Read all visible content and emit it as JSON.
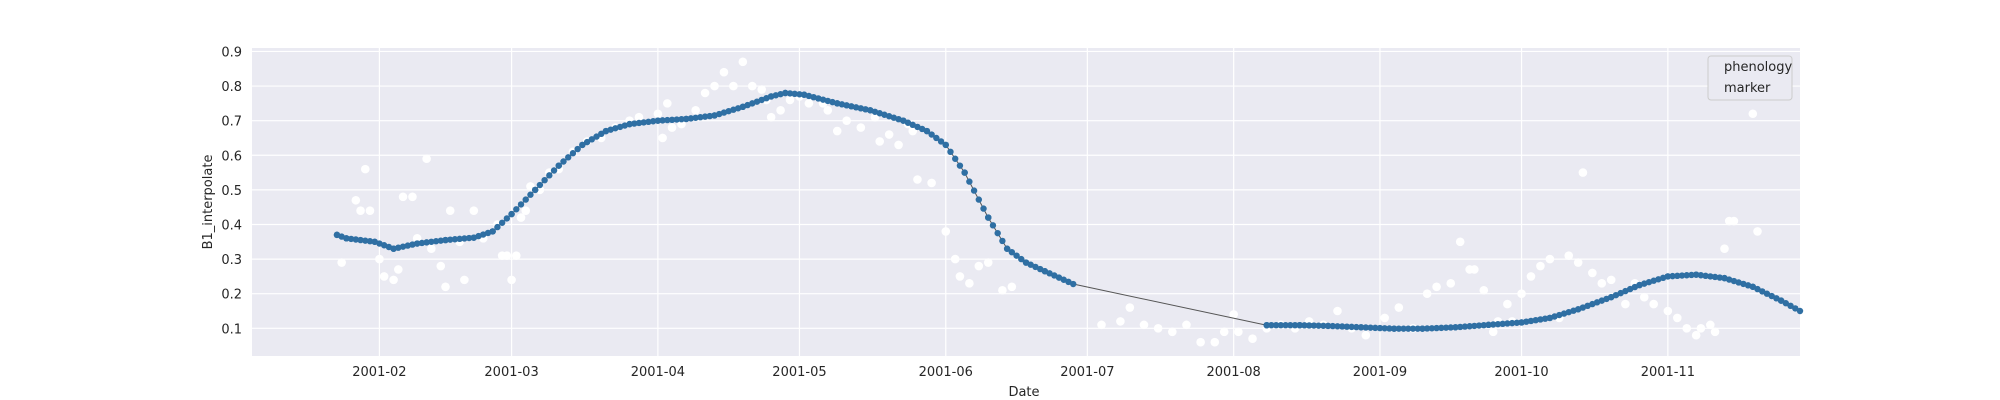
{
  "chart_data": {
    "type": "scatter",
    "title": "",
    "xlabel": "Date",
    "ylabel": "B1_interpolate",
    "x_axis": {
      "type": "date",
      "range": [
        "2001-01-05",
        "2001-11-29"
      ],
      "ticks": [
        "2001-02-01",
        "2001-03-01",
        "2001-04-01",
        "2001-05-01",
        "2001-06-01",
        "2001-07-01",
        "2001-08-01",
        "2001-09-01",
        "2001-10-01",
        "2001-11-01"
      ],
      "tick_labels": [
        "2001-02",
        "2001-03",
        "2001-04",
        "2001-05",
        "2001-06",
        "2001-07",
        "2001-08",
        "2001-09",
        "2001-10",
        "2001-11"
      ]
    },
    "y_axis": {
      "range": [
        0.02,
        0.91
      ],
      "ticks": [
        0.1,
        0.2,
        0.3,
        0.4,
        0.5,
        0.6,
        0.7,
        0.8,
        0.9
      ],
      "tick_labels": [
        "0.1",
        "0.2",
        "0.3",
        "0.4",
        "0.5",
        "0.6",
        "0.7",
        "0.8",
        "0.9"
      ]
    },
    "grid": true,
    "style": {
      "background": "#eaeaf2",
      "grid_color": "#ffffff",
      "raw_color": "#ffffff",
      "smoothed_color": "#2f6fa3",
      "line_color": "#555555"
    },
    "legend": {
      "position": "top-right",
      "entries": [
        "phenology",
        "marker"
      ]
    },
    "series": [
      {
        "role": "raw",
        "points": [
          [
            "2001-01-24",
            0.29
          ],
          [
            "2001-01-27",
            0.47
          ],
          [
            "2001-01-28",
            0.44
          ],
          [
            "2001-01-29",
            0.56
          ],
          [
            "2001-01-30",
            0.44
          ],
          [
            "2001-02-01",
            0.3
          ],
          [
            "2001-02-02",
            0.25
          ],
          [
            "2001-02-04",
            0.24
          ],
          [
            "2001-02-05",
            0.27
          ],
          [
            "2001-02-06",
            0.48
          ],
          [
            "2001-02-08",
            0.48
          ],
          [
            "2001-02-09",
            0.36
          ],
          [
            "2001-02-11",
            0.59
          ],
          [
            "2001-02-12",
            0.33
          ],
          [
            "2001-02-14",
            0.28
          ],
          [
            "2001-02-15",
            0.22
          ],
          [
            "2001-02-16",
            0.44
          ],
          [
            "2001-02-18",
            0.35
          ],
          [
            "2001-02-19",
            0.24
          ],
          [
            "2001-02-21",
            0.44
          ],
          [
            "2001-02-23",
            0.36
          ],
          [
            "2001-02-26",
            0.4
          ],
          [
            "2001-02-27",
            0.31
          ],
          [
            "2001-02-28",
            0.31
          ],
          [
            "2001-03-01",
            0.24
          ],
          [
            "2001-03-02",
            0.31
          ],
          [
            "2001-03-03",
            0.42
          ],
          [
            "2001-03-04",
            0.44
          ],
          [
            "2001-03-05",
            0.51
          ],
          [
            "2001-03-07",
            0.5
          ],
          [
            "2001-03-09",
            0.55
          ],
          [
            "2001-03-11",
            0.56
          ],
          [
            "2001-03-14",
            0.61
          ],
          [
            "2001-03-17",
            0.64
          ],
          [
            "2001-03-20",
            0.65
          ],
          [
            "2001-03-23",
            0.68
          ],
          [
            "2001-03-26",
            0.7
          ],
          [
            "2001-03-28",
            0.71
          ],
          [
            "2001-04-01",
            0.72
          ],
          [
            "2001-04-02",
            0.65
          ],
          [
            "2001-04-03",
            0.75
          ],
          [
            "2001-04-04",
            0.68
          ],
          [
            "2001-04-06",
            0.69
          ],
          [
            "2001-04-09",
            0.73
          ],
          [
            "2001-04-11",
            0.78
          ],
          [
            "2001-04-13",
            0.8
          ],
          [
            "2001-04-15",
            0.84
          ],
          [
            "2001-04-17",
            0.8
          ],
          [
            "2001-04-19",
            0.87
          ],
          [
            "2001-04-21",
            0.8
          ],
          [
            "2001-04-23",
            0.79
          ],
          [
            "2001-04-24",
            0.76
          ],
          [
            "2001-04-25",
            0.71
          ],
          [
            "2001-04-27",
            0.73
          ],
          [
            "2001-04-29",
            0.76
          ],
          [
            "2001-05-01",
            0.77
          ],
          [
            "2001-05-03",
            0.75
          ],
          [
            "2001-05-06",
            0.75
          ],
          [
            "2001-05-07",
            0.73
          ],
          [
            "2001-05-09",
            0.67
          ],
          [
            "2001-05-11",
            0.7
          ],
          [
            "2001-05-14",
            0.68
          ],
          [
            "2001-05-17",
            0.71
          ],
          [
            "2001-05-18",
            0.64
          ],
          [
            "2001-05-20",
            0.66
          ],
          [
            "2001-05-22",
            0.63
          ],
          [
            "2001-05-24",
            0.69
          ],
          [
            "2001-05-25",
            0.67
          ],
          [
            "2001-05-26",
            0.53
          ],
          [
            "2001-05-29",
            0.52
          ],
          [
            "2001-06-01",
            0.38
          ],
          [
            "2001-06-03",
            0.3
          ],
          [
            "2001-06-04",
            0.25
          ],
          [
            "2001-06-06",
            0.23
          ],
          [
            "2001-06-08",
            0.28
          ],
          [
            "2001-06-10",
            0.29
          ],
          [
            "2001-06-13",
            0.21
          ],
          [
            "2001-06-15",
            0.22
          ],
          [
            "2001-07-04",
            0.11
          ],
          [
            "2001-07-08",
            0.12
          ],
          [
            "2001-07-10",
            0.16
          ],
          [
            "2001-07-13",
            0.11
          ],
          [
            "2001-07-16",
            0.1
          ],
          [
            "2001-07-19",
            0.09
          ],
          [
            "2001-07-22",
            0.11
          ],
          [
            "2001-07-25",
            0.06
          ],
          [
            "2001-07-28",
            0.06
          ],
          [
            "2001-07-30",
            0.09
          ],
          [
            "2001-08-01",
            0.14
          ],
          [
            "2001-08-02",
            0.09
          ],
          [
            "2001-08-05",
            0.07
          ],
          [
            "2001-08-08",
            0.1
          ],
          [
            "2001-08-11",
            0.11
          ],
          [
            "2001-08-14",
            0.1
          ],
          [
            "2001-08-17",
            0.12
          ],
          [
            "2001-08-20",
            0.11
          ],
          [
            "2001-08-23",
            0.15
          ],
          [
            "2001-08-26",
            0.1
          ],
          [
            "2001-08-29",
            0.08
          ],
          [
            "2001-09-02",
            0.13
          ],
          [
            "2001-09-05",
            0.16
          ],
          [
            "2001-09-08",
            0.1
          ],
          [
            "2001-09-11",
            0.2
          ],
          [
            "2001-09-13",
            0.22
          ],
          [
            "2001-09-16",
            0.23
          ],
          [
            "2001-09-18",
            0.35
          ],
          [
            "2001-09-20",
            0.27
          ],
          [
            "2001-09-21",
            0.27
          ],
          [
            "2001-09-23",
            0.21
          ],
          [
            "2001-09-25",
            0.09
          ],
          [
            "2001-09-26",
            0.12
          ],
          [
            "2001-09-28",
            0.17
          ],
          [
            "2001-09-29",
            0.12
          ],
          [
            "2001-10-01",
            0.2
          ],
          [
            "2001-10-03",
            0.25
          ],
          [
            "2001-10-05",
            0.28
          ],
          [
            "2001-10-07",
            0.3
          ],
          [
            "2001-10-09",
            0.13
          ],
          [
            "2001-10-11",
            0.31
          ],
          [
            "2001-10-13",
            0.29
          ],
          [
            "2001-10-14",
            0.55
          ],
          [
            "2001-10-16",
            0.26
          ],
          [
            "2001-10-18",
            0.23
          ],
          [
            "2001-10-20",
            0.24
          ],
          [
            "2001-10-23",
            0.17
          ],
          [
            "2001-10-25",
            0.23
          ],
          [
            "2001-10-27",
            0.19
          ],
          [
            "2001-10-29",
            0.17
          ],
          [
            "2001-11-01",
            0.15
          ],
          [
            "2001-11-03",
            0.13
          ],
          [
            "2001-11-05",
            0.1
          ],
          [
            "2001-11-07",
            0.08
          ],
          [
            "2001-11-08",
            0.1
          ],
          [
            "2001-11-10",
            0.11
          ],
          [
            "2001-11-11",
            0.09
          ],
          [
            "2001-11-13",
            0.33
          ],
          [
            "2001-11-14",
            0.41
          ],
          [
            "2001-11-15",
            0.41
          ],
          [
            "2001-11-19",
            0.72
          ],
          [
            "2001-11-20",
            0.38
          ]
        ]
      },
      {
        "role": "smoothed",
        "knots": [
          [
            "2001-01-23",
            0.37
          ],
          [
            "2001-01-25",
            0.36
          ],
          [
            "2001-01-31",
            0.35
          ],
          [
            "2001-02-04",
            0.33
          ],
          [
            "2001-02-09",
            0.345
          ],
          [
            "2001-02-15",
            0.355
          ],
          [
            "2001-02-21",
            0.362
          ],
          [
            "2001-02-25",
            0.38
          ],
          [
            "2001-03-01",
            0.43
          ],
          [
            "2001-03-06",
            0.5
          ],
          [
            "2001-03-11",
            0.57
          ],
          [
            "2001-03-16",
            0.63
          ],
          [
            "2001-03-21",
            0.67
          ],
          [
            "2001-03-26",
            0.69
          ],
          [
            "2001-04-01",
            0.7
          ],
          [
            "2001-04-07",
            0.705
          ],
          [
            "2001-04-13",
            0.715
          ],
          [
            "2001-04-19",
            0.74
          ],
          [
            "2001-04-25",
            0.77
          ],
          [
            "2001-04-28",
            0.78
          ],
          [
            "2001-05-02",
            0.775
          ],
          [
            "2001-05-09",
            0.75
          ],
          [
            "2001-05-16",
            0.73
          ],
          [
            "2001-05-23",
            0.7
          ],
          [
            "2001-05-28",
            0.67
          ],
          [
            "2001-06-01",
            0.63
          ],
          [
            "2001-06-05",
            0.55
          ],
          [
            "2001-06-10",
            0.42
          ],
          [
            "2001-06-14",
            0.33
          ],
          [
            "2001-06-18",
            0.29
          ],
          [
            "2001-06-22",
            0.265
          ],
          [
            "2001-06-28",
            0.228
          ],
          [
            "2001-08-08",
            0.109
          ],
          [
            "2001-08-15",
            0.109
          ],
          [
            "2001-08-21",
            0.107
          ],
          [
            "2001-08-28",
            0.103
          ],
          [
            "2001-09-04",
            0.099
          ],
          [
            "2001-09-10",
            0.099
          ],
          [
            "2001-09-17",
            0.103
          ],
          [
            "2001-09-24",
            0.11
          ],
          [
            "2001-10-01",
            0.117
          ],
          [
            "2001-10-07",
            0.13
          ],
          [
            "2001-10-13",
            0.155
          ],
          [
            "2001-10-20",
            0.19
          ],
          [
            "2001-10-26",
            0.225
          ],
          [
            "2001-11-01",
            0.25
          ],
          [
            "2001-11-07",
            0.255
          ],
          [
            "2001-11-13",
            0.245
          ],
          [
            "2001-11-19",
            0.22
          ],
          [
            "2001-11-25",
            0.18
          ],
          [
            "2001-11-29",
            0.15
          ]
        ]
      }
    ]
  }
}
